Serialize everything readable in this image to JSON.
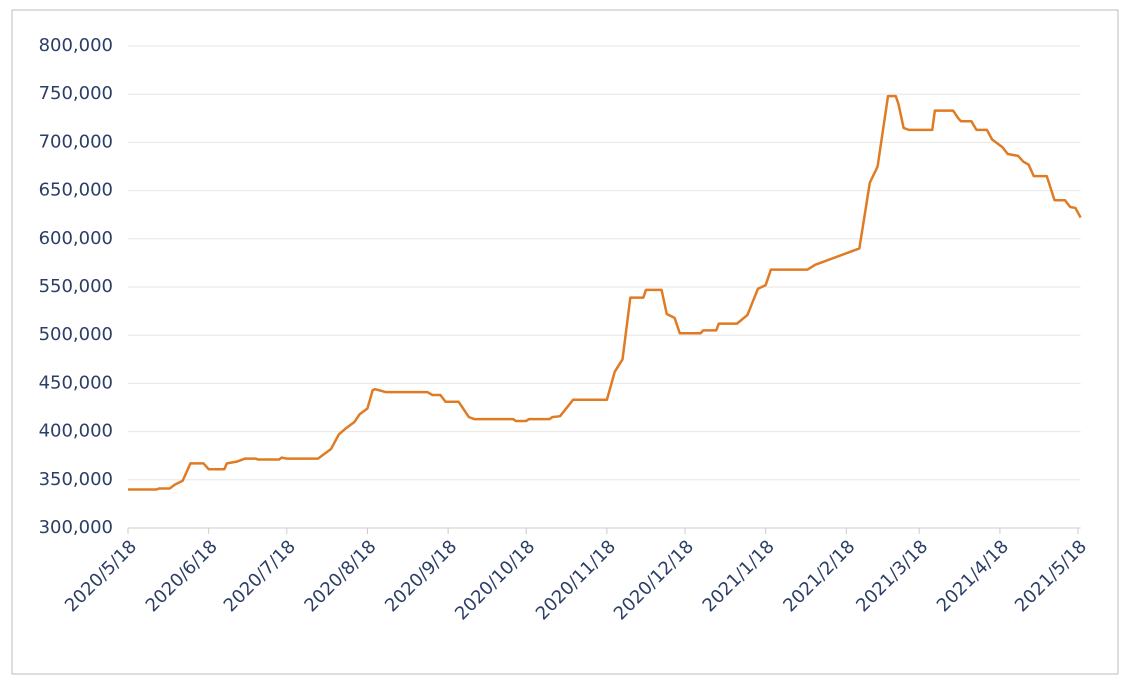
{
  "chart_data": {
    "type": "line",
    "color": "#e07b24",
    "grid": true,
    "x": [
      "2020/5/18",
      "2020/5/29",
      "2020/5/30",
      "2020/6/3",
      "2020/6/5",
      "2020/6/8",
      "2020/6/11",
      "2020/6/16",
      "2020/6/18",
      "2020/6/24",
      "2020/6/25",
      "2020/6/29",
      "2020/7/2",
      "2020/7/6",
      "2020/7/7",
      "2020/7/15",
      "2020/7/16",
      "2020/7/18",
      "2020/7/30",
      "2020/8/4",
      "2020/8/7",
      "2020/8/10",
      "2020/8/13",
      "2020/8/15",
      "2020/8/18",
      "2020/8/20",
      "2020/8/21",
      "2020/8/25",
      "2020/9/10",
      "2020/9/12",
      "2020/9/15",
      "2020/9/17",
      "2020/9/22",
      "2020/9/26",
      "2020/9/28",
      "2020/10/13",
      "2020/10/14",
      "2020/10/18",
      "2020/10/19",
      "2020/10/27",
      "2020/10/28",
      "2020/10/31",
      "2020/11/5",
      "2020/11/18",
      "2020/11/21",
      "2020/11/24",
      "2020/11/27",
      "2020/12/2",
      "2020/12/3",
      "2020/12/9",
      "2020/12/11",
      "2020/12/14",
      "2020/12/16",
      "2020/12/24",
      "2020/12/25",
      "2020/12/30",
      "2020/12/31",
      "2021/1/7",
      "2021/1/11",
      "2021/1/15",
      "2021/1/18",
      "2021/1/20",
      "2021/2/3",
      "2021/2/6",
      "2021/2/23",
      "2021/2/27",
      "2021/3/2",
      "2021/3/6",
      "2021/3/9",
      "2021/3/10",
      "2021/3/12",
      "2021/3/14",
      "2021/3/23",
      "2021/3/24",
      "2021/3/31",
      "2021/4/2",
      "2021/4/3",
      "2021/4/7",
      "2021/4/9",
      "2021/4/13",
      "2021/4/15",
      "2021/4/19",
      "2021/4/21",
      "2021/4/25",
      "2021/4/27",
      "2021/4/29",
      "2021/5/1",
      "2021/5/6",
      "2021/5/9",
      "2021/5/13",
      "2021/5/15",
      "2021/5/17",
      "2021/5/19"
    ],
    "values": [
      340000,
      340000,
      341000,
      341000,
      345000,
      349000,
      367000,
      367000,
      361000,
      361000,
      367000,
      369000,
      372000,
      372000,
      371000,
      371000,
      373000,
      372000,
      372000,
      382000,
      397000,
      404000,
      410000,
      418000,
      424000,
      443000,
      444000,
      441000,
      441000,
      438000,
      438000,
      431000,
      431000,
      415000,
      413000,
      413000,
      411000,
      411000,
      413000,
      413000,
      415000,
      416000,
      433000,
      433000,
      462000,
      475000,
      539000,
      539000,
      547000,
      547000,
      522000,
      518000,
      502000,
      502000,
      505000,
      505000,
      512000,
      512000,
      521000,
      548000,
      552000,
      568000,
      568000,
      573000,
      590000,
      658000,
      675000,
      748000,
      748000,
      740000,
      715000,
      713000,
      713000,
      733000,
      733000,
      725000,
      722000,
      722000,
      713000,
      713000,
      703000,
      695000,
      688000,
      686000,
      680000,
      677000,
      665000,
      665000,
      640000,
      640000,
      633000,
      632000,
      622000
    ],
    "xlim": [
      "2020/5/18",
      "2021/5/19"
    ],
    "xticks": [
      "2020/5/18",
      "2020/6/18",
      "2020/7/18",
      "2020/8/18",
      "2020/9/18",
      "2020/10/18",
      "2020/11/18",
      "2020/12/18",
      "2021/1/18",
      "2021/2/18",
      "2021/3/18",
      "2021/4/18",
      "2021/5/18"
    ],
    "ylim": [
      300000,
      800000
    ],
    "yticks": [
      {
        "value": 300000,
        "label": "300,000"
      },
      {
        "value": 350000,
        "label": "350,000"
      },
      {
        "value": 400000,
        "label": "400,000"
      },
      {
        "value": 450000,
        "label": "450,000"
      },
      {
        "value": 500000,
        "label": "500,000"
      },
      {
        "value": 550000,
        "label": "550,000"
      },
      {
        "value": 600000,
        "label": "600,000"
      },
      {
        "value": 650000,
        "label": "650,000"
      },
      {
        "value": 700000,
        "label": "700,000"
      },
      {
        "value": 750000,
        "label": "750,000"
      },
      {
        "value": 800000,
        "label": "800,000"
      }
    ]
  }
}
